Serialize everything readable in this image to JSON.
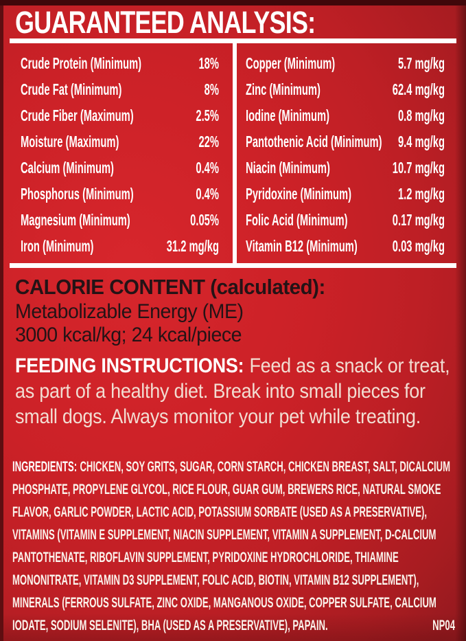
{
  "header": {
    "title": "GUARANTEED ANALYSIS:"
  },
  "analysis": {
    "left": [
      {
        "label": "Crude Protein (Minimum)",
        "value": "18%"
      },
      {
        "label": "Crude Fat (Minimum)",
        "value": "8%"
      },
      {
        "label": "Crude Fiber (Maximum)",
        "value": "2.5%"
      },
      {
        "label": "Moisture (Maximum)",
        "value": "22%"
      },
      {
        "label": "Calcium (Minimum)",
        "value": "0.4%"
      },
      {
        "label": "Phosphorus (Minimum)",
        "value": "0.4%"
      },
      {
        "label": "Magnesium (Minimum)",
        "value": "0.05%"
      },
      {
        "label": "Iron (Minimum)",
        "value": "31.2 mg/kg"
      }
    ],
    "right": [
      {
        "label": "Copper (Minimum)",
        "value": "5.7 mg/kg"
      },
      {
        "label": "Zinc (Minimum)",
        "value": "62.4 mg/kg"
      },
      {
        "label": "Iodine (Minimum)",
        "value": "0.8 mg/kg"
      },
      {
        "label": "Pantothenic Acid (Minimum)",
        "value": "9.4 mg/kg"
      },
      {
        "label": "Niacin (Minimum)",
        "value": "10.7 mg/kg"
      },
      {
        "label": "Pyridoxine (Minimum)",
        "value": "1.2 mg/kg"
      },
      {
        "label": "Folic Acid (Minimum)",
        "value": "0.17 mg/kg"
      },
      {
        "label": "Vitamin B12 (Minimum)",
        "value": "0.03 mg/kg"
      }
    ]
  },
  "calorie": {
    "heading": "CALORIE CONTENT (calculated):",
    "line1": "Metabolizable Energy (ME)",
    "line2": "3000 kcal/kg; 24 kcal/piece"
  },
  "feeding": {
    "heading": "FEEDING INSTRUCTIONS:",
    "body": "Feed as a snack or treat, as part of a healthy diet. Break into small pieces for small dogs. Always monitor your pet while treating."
  },
  "ingredients": {
    "heading": "INGREDIENTS:",
    "body": "CHICKEN, SOY GRITS, SUGAR, CORN STARCH, CHICKEN BREAST, SALT, DICALCIUM PHOSPHATE, PROPYLENE GLYCOL, RICE FLOUR, GUAR GUM, BREWERS RICE, NATURAL SMOKE FLAVOR, GARLIC POWDER, LACTIC ACID, POTASSIUM SORBATE (USED AS A PRESERVATIVE), VITAMINS (VITAMIN E SUPPLEMENT, NIACIN SUPPLEMENT, VITAMIN A SUPPLEMENT, D-CALCIUM PANTOTHENATE, RIBOFLAVIN SUPPLEMENT, PYRIDOXINE HYDROCHLORIDE, THIAMINE MONONITRATE, VITAMIN D3 SUPPLEMENT, FOLIC ACID, BIOTIN, VITAMIN B12 SUPPLEMENT), MINERALS (FERROUS SULFATE, ZINC OXIDE, MANGANOUS OXIDE, COPPER SULFATE, CALCIUM IODATE, SODIUM SELENITE), BHA (USED AS A PRESERVATIVE), PAPAIN.",
    "code": "NP04"
  },
  "colors": {
    "background_red": "#cb2127",
    "dark_edge": "#40070a",
    "rule_white": "#ffffff",
    "text_white": "#ffffff",
    "text_cream": "#f2ddd2",
    "text_dark": "#241316"
  }
}
